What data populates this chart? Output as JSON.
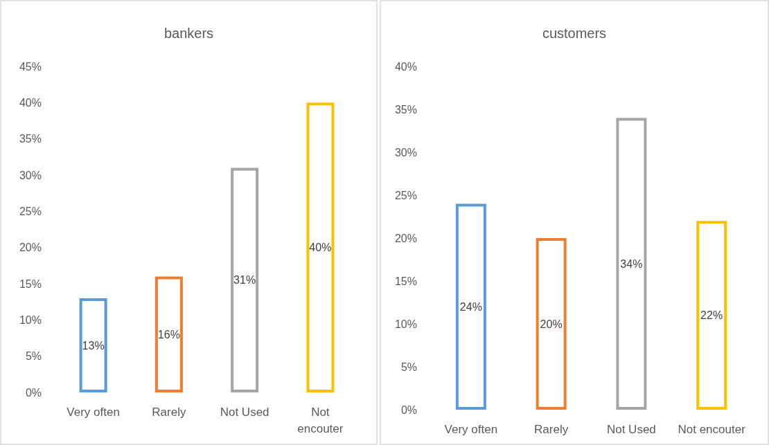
{
  "chart_data": [
    {
      "type": "bar",
      "title": "bankers",
      "categories": [
        "Very often",
        "Rarely",
        "Not Used",
        "Not encouter"
      ],
      "values": [
        13,
        16,
        31,
        40
      ],
      "colors": [
        "#5b9bd5",
        "#ed7d31",
        "#a5a5a5",
        "#ffc000"
      ],
      "value_labels": [
        "13%",
        "16%",
        "31%",
        "40%"
      ],
      "ylim": [
        0,
        45
      ],
      "yticks": [
        {
          "value": 0,
          "label": "0%"
        },
        {
          "value": 5,
          "label": "5%"
        },
        {
          "value": 10,
          "label": "10%"
        },
        {
          "value": 15,
          "label": "15%"
        },
        {
          "value": 20,
          "label": "20%"
        },
        {
          "value": 25,
          "label": "25%"
        },
        {
          "value": 30,
          "label": "30%"
        },
        {
          "value": 35,
          "label": "35%"
        },
        {
          "value": 40,
          "label": "40%"
        },
        {
          "value": 45,
          "label": "45%"
        }
      ],
      "grid": false
    },
    {
      "type": "bar",
      "title": "customers",
      "categories": [
        "Very often",
        "Rarely",
        "Not Used",
        "Not encouter"
      ],
      "values": [
        24,
        20,
        34,
        22
      ],
      "colors": [
        "#5b9bd5",
        "#ed7d31",
        "#a5a5a5",
        "#ffc000"
      ],
      "value_labels": [
        "24%",
        "20%",
        "34%",
        "22%"
      ],
      "ylim": [
        0,
        40
      ],
      "yticks": [
        {
          "value": 0,
          "label": "0%"
        },
        {
          "value": 5,
          "label": "5%"
        },
        {
          "value": 10,
          "label": "10%"
        },
        {
          "value": 15,
          "label": "15%"
        },
        {
          "value": 20,
          "label": "20%"
        },
        {
          "value": 25,
          "label": "25%"
        },
        {
          "value": 30,
          "label": "30%"
        },
        {
          "value": 35,
          "label": "35%"
        },
        {
          "value": 40,
          "label": "40%"
        }
      ],
      "grid": false
    }
  ]
}
